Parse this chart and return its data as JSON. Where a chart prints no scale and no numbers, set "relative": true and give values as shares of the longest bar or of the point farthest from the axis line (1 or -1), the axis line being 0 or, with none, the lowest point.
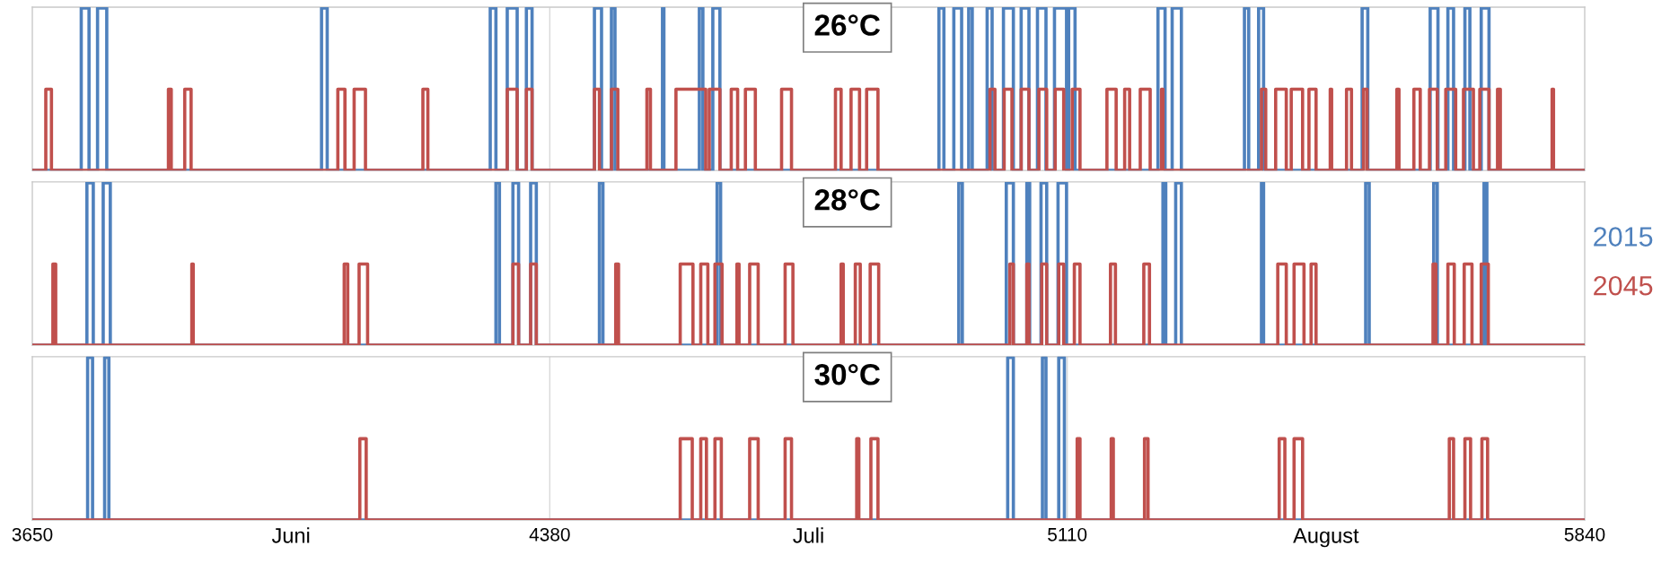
{
  "chart_data": [
    {
      "type": "step",
      "title": "26°C",
      "relative": true,
      "xlim": [
        3650,
        5840
      ],
      "tick_labels": false,
      "ref_lines": [
        {
          "axis": "x",
          "value": 4380,
          "color": "#d9d9d9"
        }
      ],
      "series": [
        {
          "color": "#4f81bd",
          "x": [
            3650,
            3719,
            3730,
            3742,
            3755,
            4058,
            4066,
            4296,
            4304,
            4320,
            4334,
            4347,
            4355,
            4443,
            4453,
            4467,
            4472,
            4539,
            4541,
            4591,
            4596,
            4610,
            4620,
            4929,
            4936,
            4950,
            4961,
            4971,
            4976,
            4997,
            5004,
            5020,
            5034,
            5045,
            5056,
            5068,
            5080,
            5092,
            5109,
            5112,
            5121,
            5238,
            5248,
            5258,
            5271,
            5360,
            5366,
            5380,
            5387,
            5526,
            5534,
            5622,
            5633,
            5647,
            5655,
            5671,
            5678,
            5694,
            5705,
            5840
          ],
          "values": [
            0,
            1,
            0,
            1,
            0,
            1,
            0,
            1,
            0,
            1,
            0,
            1,
            0,
            1,
            0,
            1,
            0,
            1,
            0,
            1,
            0,
            1,
            0,
            1,
            0,
            1,
            0,
            1,
            0,
            1,
            0,
            1,
            0,
            1,
            0,
            1,
            0,
            1,
            0,
            1,
            0,
            1,
            0,
            1,
            0,
            1,
            0,
            1,
            0,
            1,
            0,
            1,
            0,
            1,
            0,
            1,
            0,
            1,
            0,
            0
          ]
        },
        {
          "color": "#c0504d",
          "x": [
            3650,
            3669,
            3677,
            3842,
            3846,
            3865,
            3874,
            4081,
            4091,
            4104,
            4120,
            4201,
            4208,
            4320,
            4334,
            4347,
            4355,
            4443,
            4450,
            4467,
            4476,
            4517,
            4522,
            4558,
            4600,
            4605,
            4620,
            4636,
            4645,
            4656,
            4670,
            4707,
            4721,
            4783,
            4791,
            4805,
            4817,
            4827,
            4843,
            5001,
            5008,
            5021,
            5032,
            5045,
            5056,
            5070,
            5081,
            5093,
            5105,
            5117,
            5128,
            5166,
            5179,
            5191,
            5198,
            5213,
            5227,
            5243,
            5245,
            5384,
            5390,
            5404,
            5419,
            5426,
            5442,
            5451,
            5461,
            5481,
            5483,
            5504,
            5511,
            5528,
            5533,
            5575,
            5578,
            5599,
            5608,
            5621,
            5632,
            5644,
            5658,
            5669,
            5683,
            5692,
            5705,
            5717,
            5721,
            5794,
            5796,
            5840
          ],
          "values": [
            0,
            0.5,
            0,
            0.5,
            0,
            0.5,
            0,
            0.5,
            0,
            0.5,
            0,
            0.5,
            0,
            0.5,
            0,
            0.5,
            0,
            0.5,
            0,
            0.5,
            0,
            0.5,
            0,
            0.5,
            0,
            0.5,
            0,
            0.5,
            0,
            0.5,
            0,
            0.5,
            0,
            0.5,
            0,
            0.5,
            0,
            0.5,
            0,
            0.5,
            0,
            0.5,
            0,
            0.5,
            0,
            0.5,
            0,
            0.5,
            0,
            0.5,
            0,
            0.5,
            0,
            0.5,
            0,
            0.5,
            0,
            0.5,
            0,
            0.5,
            0,
            0.5,
            0,
            0.5,
            0,
            0.5,
            0,
            0.5,
            0,
            0.5,
            0,
            0.5,
            0,
            0.5,
            0,
            0.5,
            0,
            0.5,
            0,
            0.5,
            0,
            0.5,
            0,
            0.5,
            0,
            0.5,
            0,
            0.5,
            0,
            0
          ]
        }
      ]
    },
    {
      "type": "step",
      "title": "28°C",
      "relative": true,
      "xlim": [
        3650,
        5840
      ],
      "tick_labels": false,
      "legend": "right",
      "ref_lines": [
        {
          "axis": "x",
          "value": 4380,
          "color": "#d9d9d9"
        }
      ],
      "series": [
        {
          "name": "2015",
          "color": "#4f81bd",
          "x": [
            3650,
            3727,
            3736,
            3750,
            3760,
            4304,
            4309,
            4328,
            4336,
            4353,
            4361,
            4450,
            4455,
            4616,
            4621,
            4957,
            4962,
            5024,
            5034,
            5053,
            5057,
            5073,
            5081,
            5097,
            5109,
            5245,
            5249,
            5263,
            5271,
            5384,
            5387,
            5531,
            5536,
            5627,
            5632,
            5698,
            5702,
            5840
          ],
          "values": [
            0,
            1,
            0,
            1,
            0,
            1,
            0,
            1,
            0,
            1,
            0,
            1,
            0,
            1,
            0,
            1,
            0,
            1,
            0,
            1,
            0,
            1,
            0,
            1,
            0,
            1,
            0,
            1,
            0,
            1,
            0,
            1,
            0,
            1,
            0,
            1,
            0,
            0
          ]
        },
        {
          "name": "2045",
          "color": "#c0504d",
          "x": [
            3650,
            3679,
            3683,
            3875,
            3877,
            4090,
            4095,
            4111,
            4123,
            4328,
            4336,
            4353,
            4361,
            4473,
            4477,
            4564,
            4582,
            4593,
            4603,
            4613,
            4623,
            4644,
            4647,
            4662,
            4674,
            4712,
            4723,
            4791,
            4794,
            4811,
            4818,
            4832,
            4844,
            5029,
            5034,
            5053,
            5056,
            5074,
            5081,
            5098,
            5105,
            5120,
            5128,
            5171,
            5178,
            5218,
            5226,
            5407,
            5419,
            5430,
            5444,
            5454,
            5461,
            5626,
            5630,
            5647,
            5656,
            5670,
            5681,
            5694,
            5704,
            5840
          ],
          "values": [
            0,
            0.5,
            0,
            0.5,
            0,
            0.5,
            0,
            0.5,
            0,
            0.5,
            0,
            0.5,
            0,
            0.5,
            0,
            0.5,
            0,
            0.5,
            0,
            0.5,
            0,
            0.5,
            0,
            0.5,
            0,
            0.5,
            0,
            0.5,
            0,
            0.5,
            0,
            0.5,
            0,
            0.5,
            0,
            0.5,
            0,
            0.5,
            0,
            0.5,
            0,
            0.5,
            0,
            0.5,
            0,
            0.5,
            0,
            0.5,
            0,
            0.5,
            0,
            0.5,
            0,
            0.5,
            0,
            0.5,
            0,
            0.5,
            0,
            0.5,
            0,
            0
          ]
        }
      ]
    },
    {
      "type": "step",
      "title": "30°C",
      "relative": true,
      "xlim": [
        3650,
        5840
      ],
      "tick_labels": "x",
      "xticks": [
        3650,
        {
          "value": 4015,
          "label": "Juni"
        },
        4380,
        {
          "value": 4745,
          "label": "Juli"
        },
        5110,
        {
          "value": 5475,
          "label": "August"
        },
        5840
      ],
      "ref_lines": [
        {
          "axis": "x",
          "value": 4380,
          "color": "#d9d9d9"
        },
        {
          "axis": "x",
          "value": 5110,
          "color": "#d9d9d9"
        }
      ],
      "series": [
        {
          "color": "#4f81bd",
          "x": [
            3650,
            3728,
            3735,
            3752,
            3758,
            5026,
            5034,
            5075,
            5080,
            5098,
            5106,
            5840
          ],
          "values": [
            0,
            1,
            0,
            1,
            0,
            1,
            0,
            1,
            0,
            1,
            0,
            0
          ]
        },
        {
          "color": "#c0504d",
          "x": [
            3650,
            4112,
            4121,
            4564,
            4581,
            4593,
            4601,
            4613,
            4622,
            4662,
            4674,
            4712,
            4721,
            4813,
            4816,
            4833,
            4843,
            5124,
            5128,
            5172,
            5175,
            5219,
            5224,
            5409,
            5417,
            5430,
            5442,
            5649,
            5655,
            5671,
            5679,
            5695,
            5703,
            5840
          ],
          "values": [
            0,
            0.5,
            0,
            0.5,
            0,
            0.5,
            0,
            0.5,
            0,
            0.5,
            0,
            0.5,
            0,
            0.5,
            0,
            0.5,
            0,
            0.5,
            0,
            0.5,
            0,
            0.5,
            0,
            0.5,
            0,
            0.5,
            0,
            0.5,
            0,
            0.5,
            0,
            0.5,
            0,
            0
          ]
        }
      ]
    }
  ]
}
